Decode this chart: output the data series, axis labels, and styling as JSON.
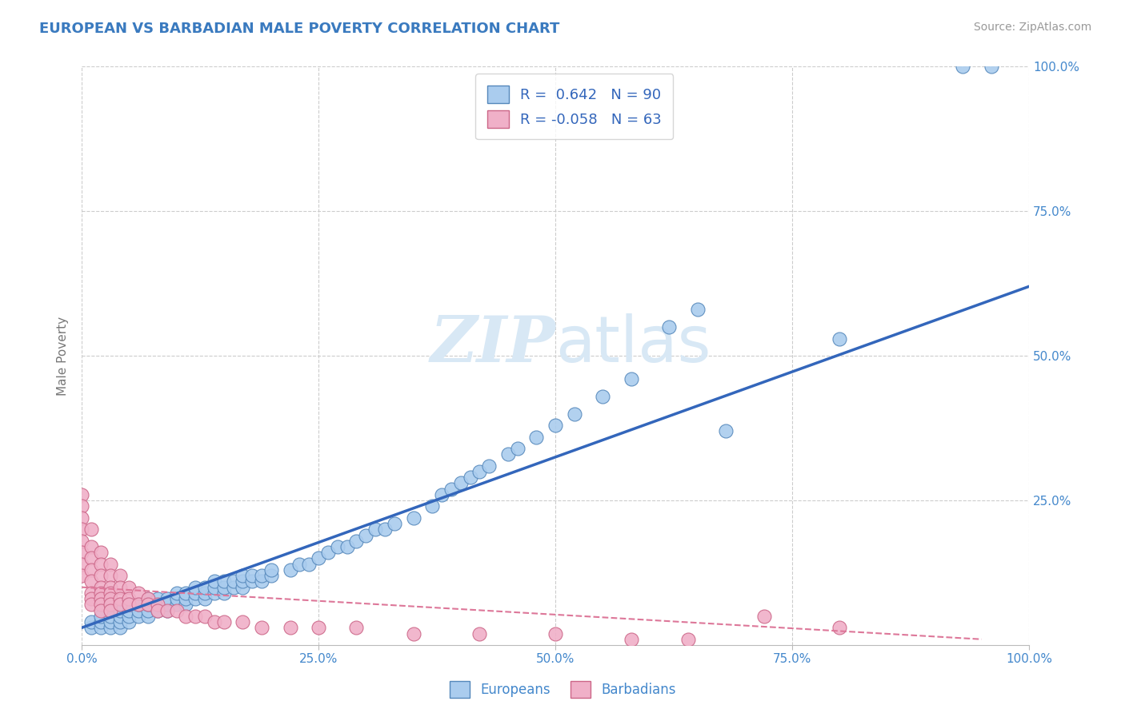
{
  "title": "EUROPEAN VS BARBADIAN MALE POVERTY CORRELATION CHART",
  "source": "Source: ZipAtlas.com",
  "ylabel": "Male Poverty",
  "xlim": [
    0.0,
    1.0
  ],
  "ylim": [
    0.0,
    1.0
  ],
  "xtick_labels": [
    "0.0%",
    "25.0%",
    "50.0%",
    "75.0%",
    "100.0%"
  ],
  "xtick_positions": [
    0.0,
    0.25,
    0.5,
    0.75,
    1.0
  ],
  "ytick_labels": [
    "25.0%",
    "50.0%",
    "75.0%",
    "100.0%"
  ],
  "ytick_positions": [
    0.25,
    0.5,
    0.75,
    1.0
  ],
  "grid_color": "#cccccc",
  "background_color": "#ffffff",
  "title_color": "#3a7abf",
  "tick_color": "#4488cc",
  "european_color": "#aaccee",
  "european_edge_color": "#5588bb",
  "barbadian_color": "#f0b0c8",
  "barbadian_edge_color": "#cc6688",
  "european_line_color": "#3366bb",
  "barbadian_line_color": "#dd7799",
  "legend_r_european": "0.642",
  "legend_n_european": "90",
  "legend_r_barbadian": "-0.058",
  "legend_n_barbadian": "63",
  "watermark_color": "#d8e8f5",
  "european_scatter": [
    [
      0.01,
      0.03
    ],
    [
      0.01,
      0.04
    ],
    [
      0.02,
      0.03
    ],
    [
      0.02,
      0.04
    ],
    [
      0.02,
      0.05
    ],
    [
      0.03,
      0.03
    ],
    [
      0.03,
      0.04
    ],
    [
      0.03,
      0.05
    ],
    [
      0.03,
      0.06
    ],
    [
      0.04,
      0.03
    ],
    [
      0.04,
      0.04
    ],
    [
      0.04,
      0.05
    ],
    [
      0.04,
      0.06
    ],
    [
      0.05,
      0.04
    ],
    [
      0.05,
      0.05
    ],
    [
      0.05,
      0.06
    ],
    [
      0.05,
      0.07
    ],
    [
      0.06,
      0.05
    ],
    [
      0.06,
      0.06
    ],
    [
      0.06,
      0.07
    ],
    [
      0.07,
      0.05
    ],
    [
      0.07,
      0.06
    ],
    [
      0.07,
      0.07
    ],
    [
      0.07,
      0.08
    ],
    [
      0.08,
      0.06
    ],
    [
      0.08,
      0.07
    ],
    [
      0.08,
      0.08
    ],
    [
      0.09,
      0.06
    ],
    [
      0.09,
      0.07
    ],
    [
      0.09,
      0.08
    ],
    [
      0.1,
      0.07
    ],
    [
      0.1,
      0.08
    ],
    [
      0.1,
      0.09
    ],
    [
      0.11,
      0.07
    ],
    [
      0.11,
      0.08
    ],
    [
      0.11,
      0.09
    ],
    [
      0.12,
      0.08
    ],
    [
      0.12,
      0.09
    ],
    [
      0.12,
      0.1
    ],
    [
      0.13,
      0.08
    ],
    [
      0.13,
      0.09
    ],
    [
      0.13,
      0.1
    ],
    [
      0.14,
      0.09
    ],
    [
      0.14,
      0.1
    ],
    [
      0.14,
      0.11
    ],
    [
      0.15,
      0.09
    ],
    [
      0.15,
      0.1
    ],
    [
      0.15,
      0.11
    ],
    [
      0.16,
      0.1
    ],
    [
      0.16,
      0.11
    ],
    [
      0.17,
      0.1
    ],
    [
      0.17,
      0.11
    ],
    [
      0.17,
      0.12
    ],
    [
      0.18,
      0.11
    ],
    [
      0.18,
      0.12
    ],
    [
      0.19,
      0.11
    ],
    [
      0.19,
      0.12
    ],
    [
      0.2,
      0.12
    ],
    [
      0.2,
      0.13
    ],
    [
      0.22,
      0.13
    ],
    [
      0.23,
      0.14
    ],
    [
      0.24,
      0.14
    ],
    [
      0.25,
      0.15
    ],
    [
      0.26,
      0.16
    ],
    [
      0.27,
      0.17
    ],
    [
      0.28,
      0.17
    ],
    [
      0.29,
      0.18
    ],
    [
      0.3,
      0.19
    ],
    [
      0.31,
      0.2
    ],
    [
      0.32,
      0.2
    ],
    [
      0.33,
      0.21
    ],
    [
      0.35,
      0.22
    ],
    [
      0.37,
      0.24
    ],
    [
      0.38,
      0.26
    ],
    [
      0.39,
      0.27
    ],
    [
      0.4,
      0.28
    ],
    [
      0.41,
      0.29
    ],
    [
      0.42,
      0.3
    ],
    [
      0.43,
      0.31
    ],
    [
      0.45,
      0.33
    ],
    [
      0.46,
      0.34
    ],
    [
      0.48,
      0.36
    ],
    [
      0.5,
      0.38
    ],
    [
      0.52,
      0.4
    ],
    [
      0.55,
      0.43
    ],
    [
      0.58,
      0.46
    ],
    [
      0.62,
      0.55
    ],
    [
      0.65,
      0.58
    ],
    [
      0.68,
      0.37
    ],
    [
      0.8,
      0.53
    ],
    [
      0.93,
      1.0
    ],
    [
      0.96,
      1.0
    ]
  ],
  "barbadian_scatter": [
    [
      0.0,
      0.26
    ],
    [
      0.0,
      0.24
    ],
    [
      0.0,
      0.22
    ],
    [
      0.0,
      0.2
    ],
    [
      0.0,
      0.18
    ],
    [
      0.0,
      0.16
    ],
    [
      0.0,
      0.14
    ],
    [
      0.0,
      0.12
    ],
    [
      0.01,
      0.2
    ],
    [
      0.01,
      0.17
    ],
    [
      0.01,
      0.15
    ],
    [
      0.01,
      0.13
    ],
    [
      0.01,
      0.11
    ],
    [
      0.01,
      0.09
    ],
    [
      0.01,
      0.08
    ],
    [
      0.01,
      0.07
    ],
    [
      0.02,
      0.16
    ],
    [
      0.02,
      0.14
    ],
    [
      0.02,
      0.12
    ],
    [
      0.02,
      0.1
    ],
    [
      0.02,
      0.09
    ],
    [
      0.02,
      0.08
    ],
    [
      0.02,
      0.07
    ],
    [
      0.02,
      0.06
    ],
    [
      0.03,
      0.14
    ],
    [
      0.03,
      0.12
    ],
    [
      0.03,
      0.1
    ],
    [
      0.03,
      0.09
    ],
    [
      0.03,
      0.08
    ],
    [
      0.03,
      0.07
    ],
    [
      0.03,
      0.06
    ],
    [
      0.04,
      0.12
    ],
    [
      0.04,
      0.1
    ],
    [
      0.04,
      0.08
    ],
    [
      0.04,
      0.07
    ],
    [
      0.05,
      0.1
    ],
    [
      0.05,
      0.08
    ],
    [
      0.05,
      0.07
    ],
    [
      0.06,
      0.09
    ],
    [
      0.06,
      0.07
    ],
    [
      0.07,
      0.08
    ],
    [
      0.07,
      0.07
    ],
    [
      0.08,
      0.07
    ],
    [
      0.08,
      0.06
    ],
    [
      0.09,
      0.06
    ],
    [
      0.1,
      0.06
    ],
    [
      0.11,
      0.05
    ],
    [
      0.12,
      0.05
    ],
    [
      0.13,
      0.05
    ],
    [
      0.14,
      0.04
    ],
    [
      0.15,
      0.04
    ],
    [
      0.17,
      0.04
    ],
    [
      0.19,
      0.03
    ],
    [
      0.22,
      0.03
    ],
    [
      0.25,
      0.03
    ],
    [
      0.29,
      0.03
    ],
    [
      0.35,
      0.02
    ],
    [
      0.42,
      0.02
    ],
    [
      0.5,
      0.02
    ],
    [
      0.58,
      0.01
    ],
    [
      0.64,
      0.01
    ],
    [
      0.72,
      0.05
    ],
    [
      0.8,
      0.03
    ]
  ],
  "european_trendline": [
    [
      0.0,
      0.03
    ],
    [
      1.0,
      0.62
    ]
  ],
  "barbadian_trendline": [
    [
      0.0,
      0.1
    ],
    [
      0.95,
      0.01
    ]
  ]
}
